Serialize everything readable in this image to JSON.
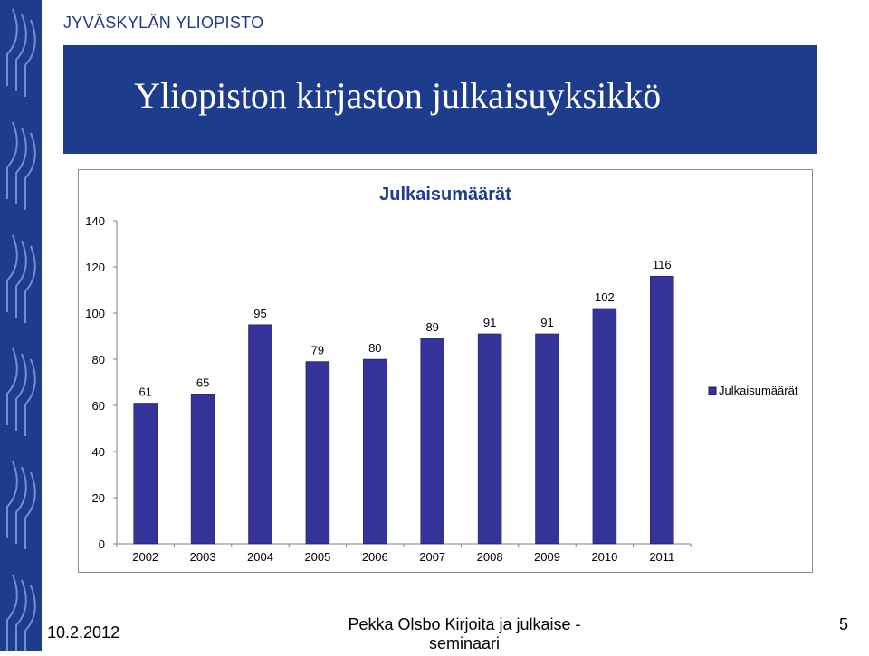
{
  "header": {
    "university": "JYVÄSKYLÄN YLIOPISTO"
  },
  "slide": {
    "title": "Yliopiston kirjaston julkaisuyksikkö"
  },
  "colors": {
    "brand": "#1e3c8c",
    "bar": "#333399",
    "bar_border": "#1a1a4d"
  },
  "chart_data": {
    "type": "bar",
    "title": "Julkaisumäärät",
    "categories": [
      "2002",
      "2003",
      "2004",
      "2005",
      "2006",
      "2007",
      "2008",
      "2009",
      "2010",
      "2011"
    ],
    "series": [
      {
        "name": "Julkaisumäärät",
        "values": [
          61,
          65,
          95,
          79,
          80,
          89,
          91,
          91,
          102,
          116
        ]
      }
    ],
    "ylim": [
      0,
      140
    ],
    "yticks": [
      0,
      20,
      40,
      60,
      80,
      100,
      120,
      140
    ],
    "grid": false,
    "legend": "right"
  },
  "footer": {
    "date": "10.2.2012",
    "center": "Pekka Olsbo Kirjoita ja julkaise - seminaari",
    "page": "5"
  }
}
